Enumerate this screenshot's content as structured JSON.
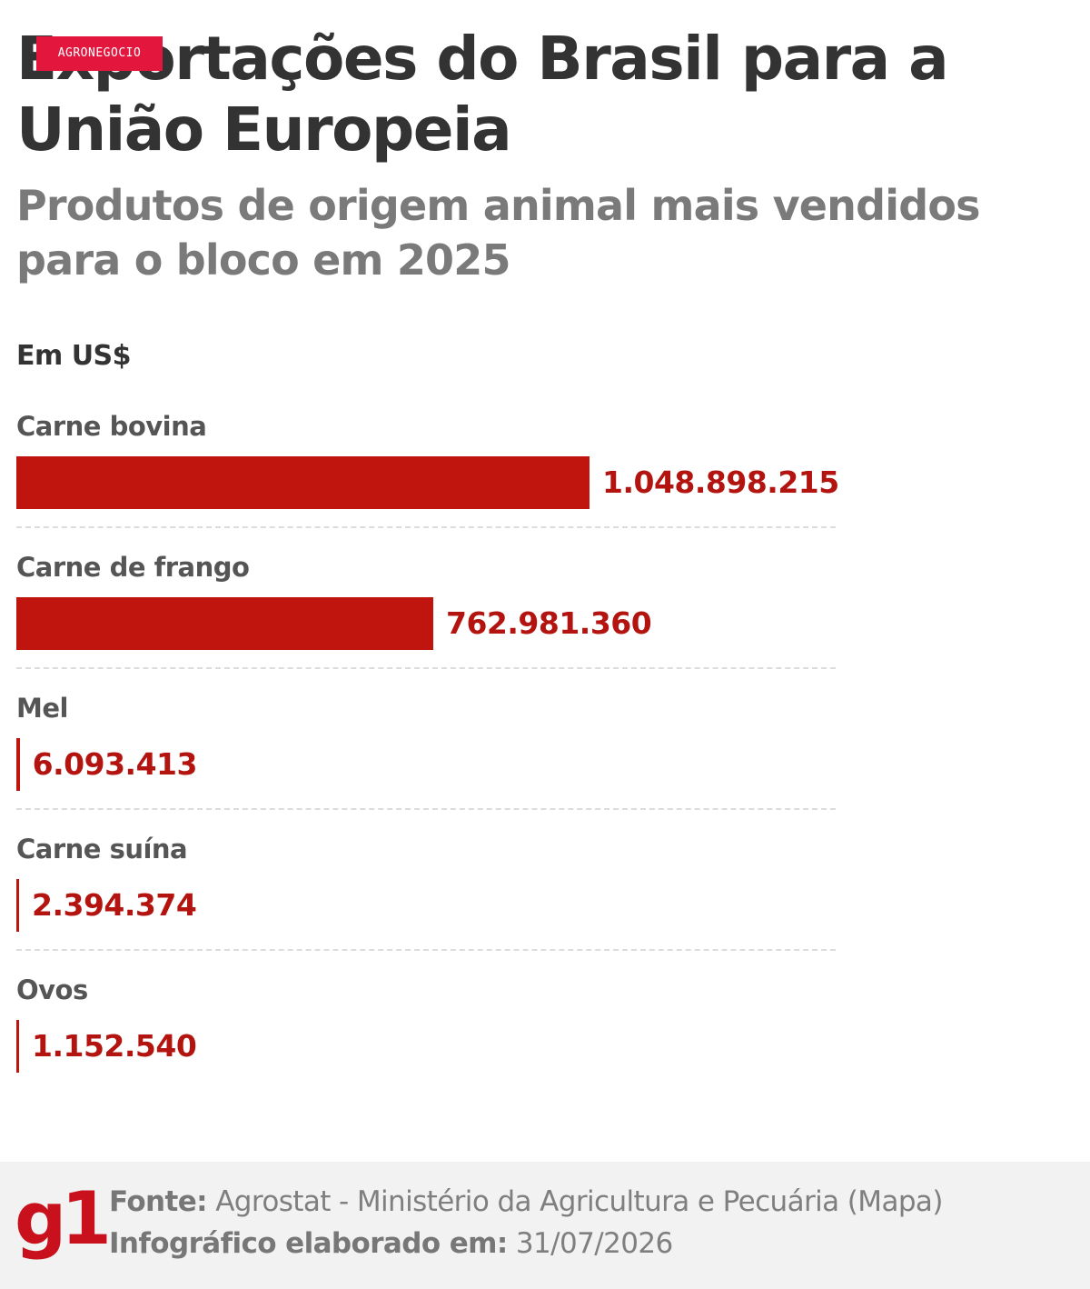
{
  "badge": "AGRONEGOCIO",
  "header": {
    "title": "Exportações do Brasil para a União Europeia",
    "subtitle": "Produtos de origem animal mais vendidos para o bloco em 2025",
    "unit": "Em US$"
  },
  "colors": {
    "bar": "#c0150f",
    "value_text": "#b3140f",
    "badge": "#e3173e",
    "logo": "#c8111c"
  },
  "chart_data": {
    "type": "bar",
    "orientation": "horizontal",
    "title": "Exportações do Brasil para a União Europeia",
    "subtitle": "Produtos de origem animal mais vendidos para o bloco em 2025",
    "unit": "Em US$",
    "categories": [
      "Carne bovina",
      "Carne de frango",
      "Mel",
      "Carne suína",
      "Ovos"
    ],
    "values": [
      1048898215,
      762981360,
      6093413,
      2394374,
      1152540
    ],
    "value_labels": [
      "1.048.898.215",
      "762.981.360",
      "6.093.413",
      "2.394.374",
      "1.152.540"
    ],
    "grid": false,
    "legend": "none"
  },
  "footer": {
    "logo": "g1",
    "source_label": "Fonte:",
    "source_text": "Agrostat - Ministério da Agricultura e Pecuária (Mapa)",
    "date_label": "Infográfico elaborado em:",
    "date_text": "31/07/2026"
  }
}
